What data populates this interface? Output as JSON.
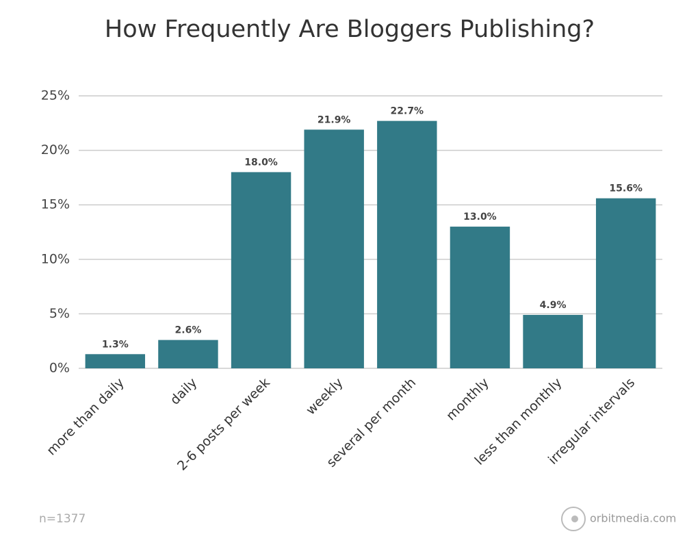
{
  "chart_data": {
    "type": "bar",
    "title": "How Frequently Are Bloggers Publishing?",
    "categories": [
      "more than daily",
      "daily",
      "2-6 posts per week",
      "weekly",
      "several per month",
      "monthly",
      "less than monthly",
      "irregular intervals"
    ],
    "values": [
      1.3,
      2.6,
      18.0,
      21.9,
      22.7,
      13.0,
      4.9,
      15.6
    ],
    "value_labels": [
      "1.3%",
      "2.6%",
      "18.0%",
      "21.9%",
      "22.7%",
      "13.0%",
      "4.9%",
      "15.6%"
    ],
    "color": "#327a87",
    "ylim": [
      0,
      25
    ],
    "yticks": [
      {
        "value": 0,
        "label": "0%"
      },
      {
        "value": 5,
        "label": "5%"
      },
      {
        "value": 10,
        "label": "10%"
      },
      {
        "value": 15,
        "label": "15%"
      },
      {
        "value": 20,
        "label": "20%"
      },
      {
        "value": 25,
        "label": "25%"
      }
    ],
    "grid": true,
    "note": "n=1377",
    "source": "orbitmedia.com"
  }
}
